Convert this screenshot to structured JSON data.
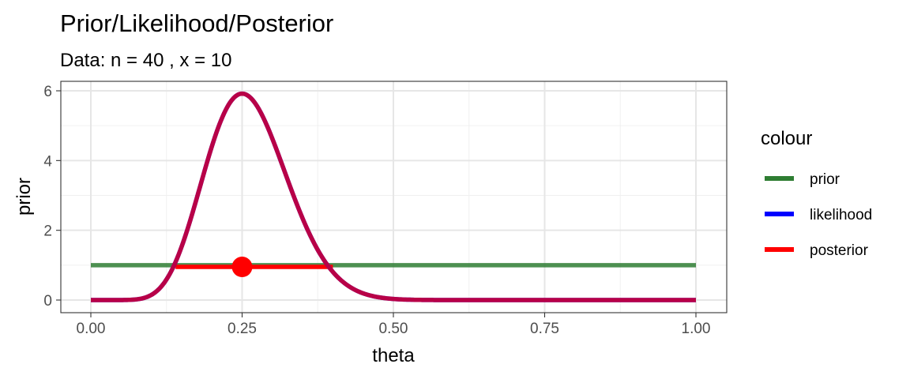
{
  "chart_data": {
    "type": "line",
    "title": "Prior/Likelihood/Posterior",
    "subtitle": "Data: n = 40 , x = 10",
    "xlabel": "theta",
    "ylabel": "prior",
    "xlim": [
      0,
      1
    ],
    "ylim": [
      0,
      6
    ],
    "x_ticks": [
      0,
      0.25,
      0.5,
      0.75,
      1.0
    ],
    "x_tick_labels": [
      "0.00",
      "0.25",
      "0.50",
      "0.75",
      "1.00"
    ],
    "y_ticks": [
      0,
      2,
      4,
      6
    ],
    "y_tick_labels": [
      "0",
      "2",
      "4",
      "6"
    ],
    "grid": true,
    "legend": {
      "title": "colour",
      "position": "right",
      "entries": [
        {
          "label": "prior",
          "color": "#2e7d32"
        },
        {
          "label": "likelihood",
          "color": "#0000ff"
        },
        {
          "label": "posterior",
          "color": "#ff0000"
        }
      ]
    },
    "series": [
      {
        "name": "prior",
        "kind": "uniform",
        "color": "#2e7d32",
        "x": [
          0,
          1
        ],
        "y": [
          1,
          1
        ]
      },
      {
        "name": "likelihood",
        "kind": "beta",
        "alpha": 11,
        "beta": 31,
        "color": "#0000ff"
      },
      {
        "name": "posterior",
        "kind": "beta",
        "alpha": 11,
        "beta": 31,
        "color": "#ff0000"
      }
    ],
    "interval": {
      "from": 0.14,
      "to": 0.4,
      "y": 0.95,
      "color": "#ff0000"
    },
    "point_estimate": {
      "x": 0.25,
      "y": 0.95,
      "color": "#ff0000"
    }
  }
}
